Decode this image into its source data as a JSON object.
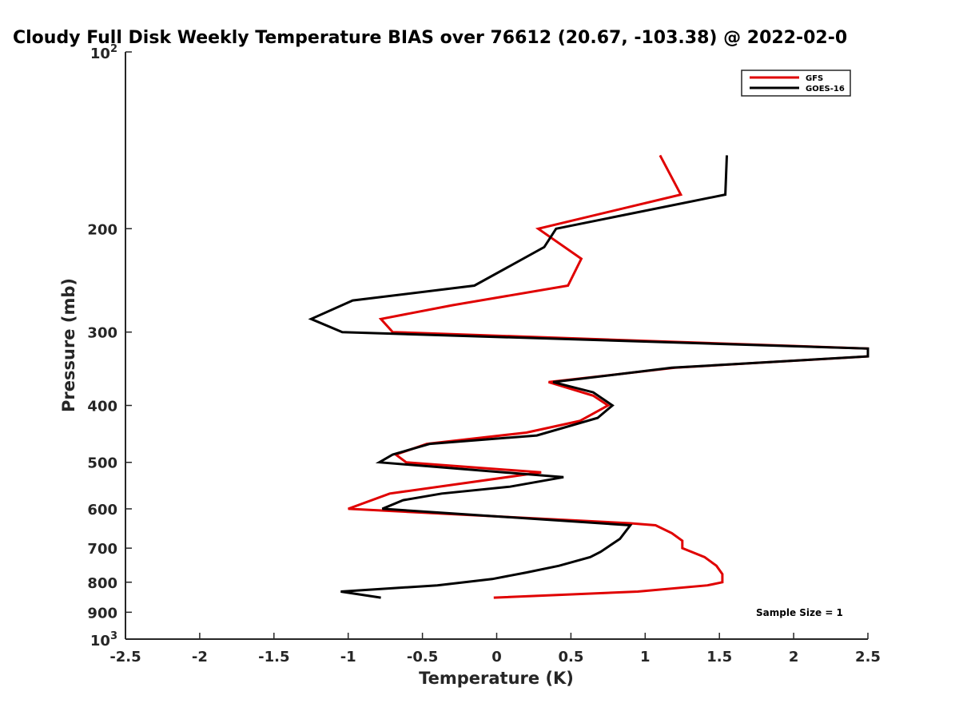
{
  "chart_data": {
    "type": "line",
    "title": "Cloudy Full Disk Weekly Temperature BIAS over 76612 (20.67, -103.38) @ 2022-02-0",
    "xlabel": "Temperature (K)",
    "ylabel": "Pressure (mb)",
    "xlim": [
      -2.5,
      2.5
    ],
    "ylim": [
      100,
      1000
    ],
    "y_scale": "log",
    "y_reversed": true,
    "grid": false,
    "legend_position": "top-right",
    "x_ticks": [
      -2.5,
      -2,
      -1.5,
      -1,
      -0.5,
      0,
      0.5,
      1,
      1.5,
      2,
      2.5
    ],
    "x_tick_labels": [
      "-2.5",
      "-2",
      "-1.5",
      "-1",
      "-0.5",
      "0",
      "0.5",
      "1",
      "1.5",
      "2",
      "2.5"
    ],
    "y_ticks": [
      200,
      300,
      400,
      500,
      600,
      700,
      800,
      900
    ],
    "y_tick_labels": [
      "200",
      "300",
      "400",
      "500",
      "600",
      "700",
      "800",
      "900"
    ],
    "y_tick_pow": [
      {
        "value": 100,
        "base": "10",
        "exp": "2"
      },
      {
        "value": 1000,
        "base": "10",
        "exp": "3"
      }
    ],
    "annotation": "Sample Size = 1",
    "series": [
      {
        "name": "GFS",
        "color": "#e00000",
        "points": [
          [
            1.1,
            150
          ],
          [
            1.24,
            175
          ],
          [
            0.28,
            200
          ],
          [
            0.57,
            225
          ],
          [
            0.48,
            250
          ],
          [
            -0.3,
            270
          ],
          [
            -0.78,
            285
          ],
          [
            -0.7,
            300
          ],
          [
            2.5,
            320
          ],
          [
            2.5,
            330
          ],
          [
            1.2,
            345
          ],
          [
            0.35,
            365
          ],
          [
            0.65,
            385
          ],
          [
            0.75,
            400
          ],
          [
            0.56,
            425
          ],
          [
            0.2,
            445
          ],
          [
            -0.47,
            465
          ],
          [
            -0.68,
            485
          ],
          [
            -0.61,
            500
          ],
          [
            0.3,
            520
          ],
          [
            -0.72,
            565
          ],
          [
            -1.0,
            600
          ],
          [
            0.9,
            635
          ],
          [
            1.07,
            640
          ],
          [
            1.18,
            660
          ],
          [
            1.25,
            680
          ],
          [
            1.25,
            700
          ],
          [
            1.4,
            725
          ],
          [
            1.48,
            750
          ],
          [
            1.52,
            775
          ],
          [
            1.52,
            800
          ],
          [
            1.42,
            810
          ],
          [
            0.95,
            830
          ],
          [
            -0.02,
            850
          ]
        ]
      },
      {
        "name": "GOES-16",
        "color": "#000000",
        "points": [
          [
            1.55,
            150
          ],
          [
            1.54,
            175
          ],
          [
            0.4,
            200
          ],
          [
            0.32,
            215
          ],
          [
            -0.15,
            250
          ],
          [
            -0.97,
            265
          ],
          [
            -1.25,
            285
          ],
          [
            -1.04,
            300
          ],
          [
            2.5,
            320
          ],
          [
            2.5,
            330
          ],
          [
            1.18,
            345
          ],
          [
            0.38,
            365
          ],
          [
            0.65,
            380
          ],
          [
            0.78,
            400
          ],
          [
            0.68,
            420
          ],
          [
            0.27,
            450
          ],
          [
            -0.45,
            465
          ],
          [
            -0.7,
            485
          ],
          [
            -0.79,
            500
          ],
          [
            0.45,
            530
          ],
          [
            0.09,
            550
          ],
          [
            -0.37,
            565
          ],
          [
            -0.63,
            580
          ],
          [
            -0.77,
            600
          ],
          [
            0.9,
            640
          ],
          [
            0.83,
            675
          ],
          [
            0.7,
            710
          ],
          [
            0.63,
            725
          ],
          [
            0.42,
            750
          ],
          [
            0.2,
            770
          ],
          [
            -0.03,
            790
          ],
          [
            -0.4,
            810
          ],
          [
            -1.05,
            830
          ],
          [
            -0.78,
            850
          ]
        ]
      }
    ]
  }
}
